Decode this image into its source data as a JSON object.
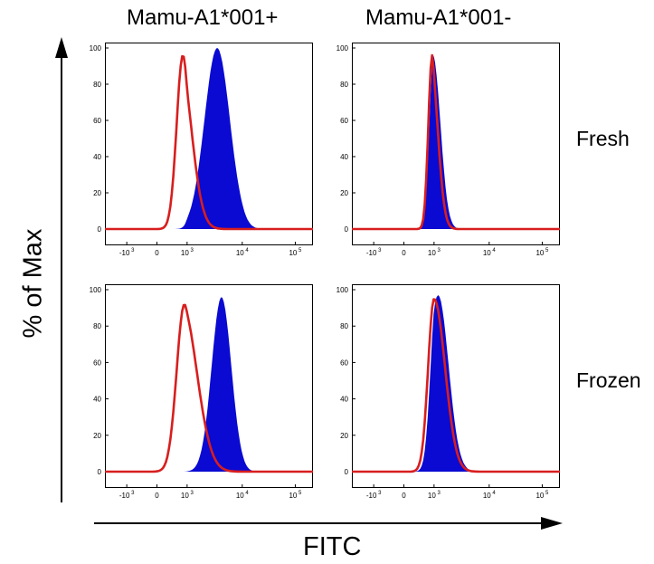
{
  "chart_data": {
    "type": "area",
    "title": "",
    "columns": [
      "Mamu-A1*001+",
      "Mamu-A1*001-"
    ],
    "rows": [
      "Fresh",
      "Frozen"
    ],
    "xlabel": "FITC",
    "ylabel": "% of Max",
    "y_ticks": [
      "0",
      "20",
      "40",
      "60",
      "80",
      "100"
    ],
    "ylim": [
      0,
      100
    ],
    "x_scale": "biexponential",
    "x_ticks": [
      {
        "base": "-10",
        "exp": "3"
      },
      {
        "base": "0",
        "exp": ""
      },
      {
        "base": "10",
        "exp": "3"
      },
      {
        "base": "10",
        "exp": "4"
      },
      {
        "base": "10",
        "exp": "5"
      }
    ],
    "colors": {
      "filled": "#0a0ad2",
      "outline": "#d81e1e"
    },
    "panels": [
      {
        "row": "Fresh",
        "column": "Mamu-A1*001+",
        "filled": {
          "peak_x": 3600,
          "peak_y": 100,
          "width": 0.22
        },
        "outline": {
          "peak_x": 700,
          "peak_y": 96,
          "width": 0.2
        }
      },
      {
        "row": "Fresh",
        "column": "Mamu-A1*001-",
        "filled": {
          "peak_x": 950,
          "peak_y": 96,
          "width": 0.13
        },
        "outline": {
          "peak_x": 850,
          "peak_y": 96,
          "width": 0.12
        }
      },
      {
        "row": "Frozen",
        "column": "Mamu-A1*001+",
        "filled": {
          "peak_x": 4300,
          "peak_y": 96,
          "width": 0.17
        },
        "outline": {
          "peak_x": 800,
          "peak_y": 92,
          "width": 0.25
        }
      },
      {
        "row": "Frozen",
        "column": "Mamu-A1*001-",
        "filled": {
          "peak_x": 1200,
          "peak_y": 97,
          "width": 0.18
        },
        "outline": {
          "peak_x": 1000,
          "peak_y": 95,
          "width": 0.19
        }
      }
    ]
  }
}
